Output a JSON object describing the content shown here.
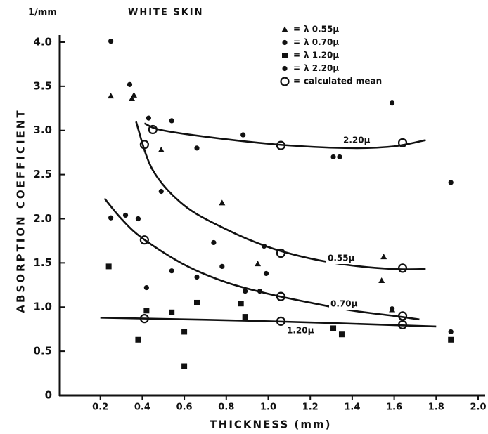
{
  "chart_data": {
    "type": "scatter",
    "title": "WHITE SKIN",
    "y_unit": "1/mm",
    "y_label": "ABSORPTION COEFFICIENT",
    "x_label": "THICKNESS (mm)",
    "xlim": [
      0,
      2.0
    ],
    "ylim": [
      0,
      4.1
    ],
    "xticks": [
      0.2,
      0.4,
      0.6,
      0.8,
      {
        "value": 1,
        "label": "1.0"
      },
      1.2,
      1.4,
      1.6,
      1.8,
      {
        "value": 2,
        "label": "2.0"
      }
    ],
    "yticks": [
      0,
      0.5,
      {
        "value": 1,
        "label": "1.0"
      },
      1.5,
      {
        "value": 2,
        "label": "2.0"
      },
      2.5,
      {
        "value": 3,
        "label": "3.0"
      },
      3.5,
      {
        "value": 4,
        "label": "4.0"
      }
    ],
    "color": "#111111",
    "series": [
      {
        "name": "λ 0.55μ",
        "marker": "triangle",
        "x": [
          0.25,
          0.35,
          0.36,
          0.49,
          0.78,
          0.95,
          1.54,
          1.55,
          1.59
        ],
        "values": [
          3.39,
          3.36,
          3.4,
          2.78,
          2.18,
          1.49,
          1.3,
          1.57,
          0.97
        ]
      },
      {
        "name": "λ 0.70μ",
        "marker": "dot",
        "x": [
          0.25,
          0.32,
          0.38,
          0.49,
          0.74,
          0.78,
          0.98,
          0.99,
          0.89,
          0.42,
          0.54,
          0.66,
          0.96,
          1.59,
          1.87
        ],
        "values": [
          2.01,
          2.04,
          2.0,
          2.31,
          1.73,
          1.46,
          1.69,
          1.38,
          1.18,
          1.22,
          1.41,
          1.34,
          1.18,
          0.98,
          0.72
        ]
      },
      {
        "name": "λ 1.20μ",
        "marker": "square",
        "x": [
          0.24,
          0.38,
          0.42,
          0.54,
          0.6,
          0.6,
          0.66,
          0.87,
          0.89,
          1.31,
          1.35,
          1.87
        ],
        "values": [
          1.46,
          0.63,
          0.96,
          0.94,
          0.72,
          0.33,
          1.05,
          1.04,
          0.89,
          0.76,
          0.69,
          0.63
        ]
      },
      {
        "name": "λ 2.20μ",
        "marker": "dot",
        "x": [
          0.25,
          0.34,
          0.43,
          0.54,
          0.66,
          0.88,
          1.31,
          1.34,
          1.59,
          1.87
        ],
        "values": [
          4.01,
          3.52,
          3.14,
          3.11,
          2.8,
          2.95,
          2.7,
          2.7,
          3.31,
          2.41
        ]
      },
      {
        "name": "calculated mean",
        "marker": "circle",
        "x": [
          0.45,
          0.41,
          1.06,
          1.64,
          0.41,
          1.06,
          1.64,
          0.41,
          1.06,
          1.64,
          1.06,
          1.64
        ],
        "values": [
          3.01,
          2.84,
          2.83,
          2.86,
          1.76,
          1.61,
          1.44,
          0.87,
          1.12,
          0.9,
          0.84,
          0.8
        ]
      }
    ],
    "curves": [
      {
        "label": "2.20μ",
        "x": [
          0.41,
          0.5,
          0.8,
          1.1,
          1.4,
          1.6,
          1.75
        ],
        "values": [
          3.08,
          3.0,
          2.9,
          2.83,
          2.8,
          2.82,
          2.89
        ]
      },
      {
        "label": "0.55μ",
        "x": [
          0.37,
          0.45,
          0.6,
          0.8,
          1.0,
          1.2,
          1.4,
          1.6,
          1.75
        ],
        "values": [
          3.1,
          2.55,
          2.15,
          1.88,
          1.68,
          1.55,
          1.47,
          1.43,
          1.43
        ]
      },
      {
        "label": "0.70μ",
        "x": [
          0.22,
          0.3,
          0.4,
          0.6,
          0.8,
          1.0,
          1.2,
          1.4,
          1.6,
          1.72
        ],
        "values": [
          2.23,
          2.0,
          1.78,
          1.48,
          1.28,
          1.15,
          1.05,
          0.96,
          0.9,
          0.86
        ]
      },
      {
        "label": "1.20μ",
        "x": [
          0.2,
          1.0,
          1.8
        ],
        "values": [
          0.88,
          0.84,
          0.78
        ]
      }
    ]
  }
}
